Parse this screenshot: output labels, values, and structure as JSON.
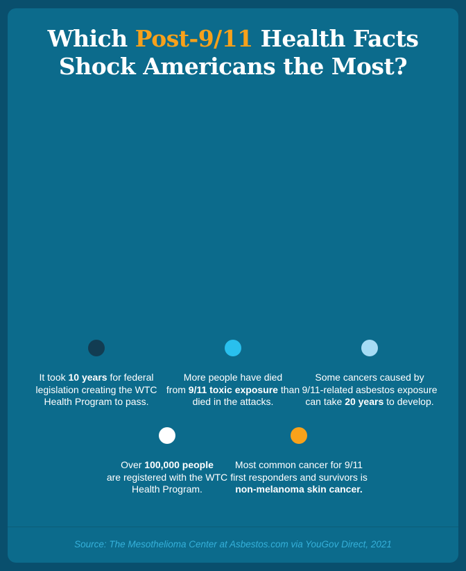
{
  "colors": {
    "outer_background": "#094f6d",
    "card_background": "#0c6b8c",
    "title_text": "#ffffff",
    "accent_orange": "#f7a11b",
    "body_text": "#ffffff",
    "divider": "#0d5c78",
    "source_text": "#35b0da"
  },
  "title": {
    "line1_pre": "Which ",
    "line1_highlight": "Post-9/11",
    "line1_post": " Health Facts",
    "line2": "Shock Americans the Most?"
  },
  "facts": [
    {
      "row": 1,
      "dot_color": "#123c52",
      "dot_name": "dark-navy-dot",
      "lines": [
        [
          {
            "text": "It took ",
            "bold": false
          },
          {
            "text": "10 years",
            "bold": true
          },
          {
            "text": " for federal",
            "bold": false
          }
        ],
        [
          {
            "text": "legislation creating the WTC",
            "bold": false
          }
        ],
        [
          {
            "text": "Health Program to pass.",
            "bold": false
          }
        ]
      ]
    },
    {
      "row": 1,
      "dot_color": "#29c0ee",
      "dot_name": "bright-cyan-dot",
      "lines": [
        [
          {
            "text": "More people have died",
            "bold": false
          }
        ],
        [
          {
            "text": "from ",
            "bold": false
          },
          {
            "text": "9/11 toxic exposure",
            "bold": true
          },
          {
            "text": " than",
            "bold": false
          }
        ],
        [
          {
            "text": "died in the attacks.",
            "bold": false
          }
        ]
      ]
    },
    {
      "row": 1,
      "dot_color": "#a6dcf5",
      "dot_name": "light-blue-dot",
      "lines": [
        [
          {
            "text": "Some cancers caused by",
            "bold": false
          }
        ],
        [
          {
            "text": "9/11-related asbestos exposure",
            "bold": false
          }
        ],
        [
          {
            "text": "can take ",
            "bold": false
          },
          {
            "text": "20 years",
            "bold": true
          },
          {
            "text": " to develop.",
            "bold": false
          }
        ]
      ]
    },
    {
      "row": 2,
      "dot_color": "#ffffff",
      "dot_name": "white-dot",
      "lines": [
        [
          {
            "text": "Over ",
            "bold": false
          },
          {
            "text": "100,000 people",
            "bold": true
          }
        ],
        [
          {
            "text": "are registered with the WTC",
            "bold": false
          }
        ],
        [
          {
            "text": "Health Program.",
            "bold": false
          }
        ]
      ]
    },
    {
      "row": 2,
      "dot_color": "#f9a21a",
      "dot_name": "orange-dot",
      "lines": [
        [
          {
            "text": "Most common cancer for 9/11",
            "bold": false
          }
        ],
        [
          {
            "text": "first responders and survivors is",
            "bold": false
          }
        ],
        [
          {
            "text": "non-melanoma skin cancer.",
            "bold": true
          }
        ]
      ]
    }
  ],
  "source": {
    "text": "Source: The Mesothelioma Center at Asbestos.com via YouGov Direct, 2021"
  },
  "chart_data": {
    "type": "table",
    "title": "Which Post-9/11 Health Facts Shock Americans the Most?",
    "categories": [
      "It took 10 years for federal legislation creating the WTC Health Program to pass.",
      "More people have died from 9/11 toxic exposure than died in the attacks.",
      "Some cancers caused by 9/11-related asbestos exposure can take 20 years to develop.",
      "Over 100,000 people are registered with the WTC Health Program.",
      "Most common cancer for 9/11 first responders and survivors is non-melanoma skin cancer."
    ],
    "marker_colors": [
      "#123c52",
      "#29c0ee",
      "#a6dcf5",
      "#ffffff",
      "#f9a21a"
    ],
    "legend_position": "bottom",
    "source": "Source: The Mesothelioma Center at Asbestos.com via YouGov Direct, 2021"
  }
}
